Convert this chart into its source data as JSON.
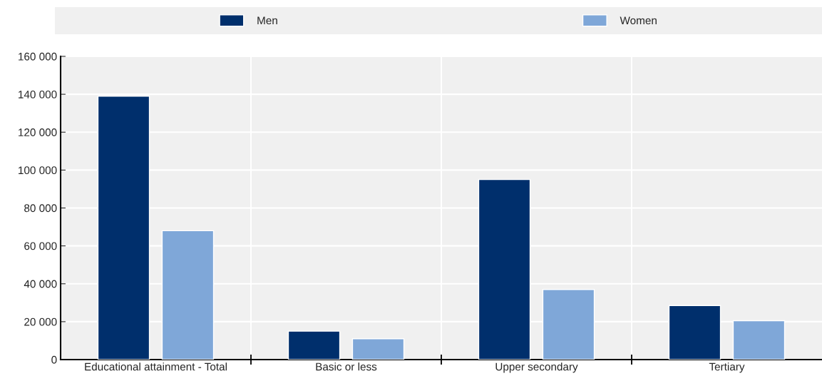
{
  "chart_data": {
    "type": "bar",
    "categories": [
      "Educational attainment - Total",
      "Basic or less",
      "Upper secondary",
      "Tertiary"
    ],
    "series": [
      {
        "name": "Men",
        "color": "#002f6c",
        "values": [
          139000,
          15000,
          95000,
          28500
        ]
      },
      {
        "name": "Women",
        "color": "#7fa7d8",
        "values": [
          68000,
          11000,
          37000,
          20500
        ]
      }
    ],
    "ylim": [
      0,
      160000
    ],
    "yticks": [
      {
        "value": 0,
        "label": "0"
      },
      {
        "value": 20000,
        "label": "20 000"
      },
      {
        "value": 40000,
        "label": "40 000"
      },
      {
        "value": 60000,
        "label": "60 000"
      },
      {
        "value": 80000,
        "label": "80 000"
      },
      {
        "value": 100000,
        "label": "100 000"
      },
      {
        "value": 120000,
        "label": "120 000"
      },
      {
        "value": 140000,
        "label": "140 000"
      },
      {
        "value": 160000,
        "label": "160 000"
      }
    ],
    "grid": true,
    "legend": "top"
  }
}
